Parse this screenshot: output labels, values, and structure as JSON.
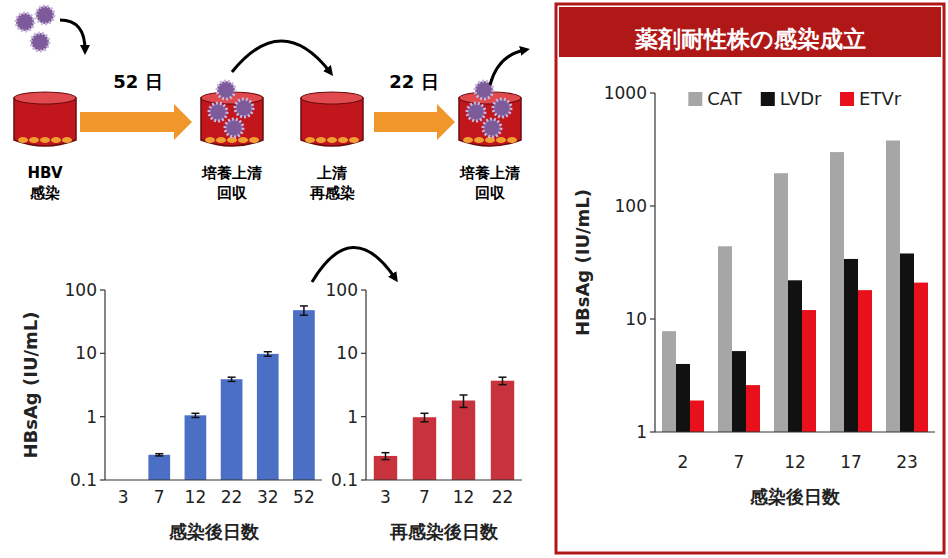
{
  "diagram": {
    "steps": [
      {
        "label": [
          "HBV",
          "感染"
        ]
      },
      {
        "label": [
          "培養上清",
          "回収"
        ]
      },
      {
        "label": [
          "上清",
          "再感染"
        ]
      },
      {
        "label": [
          "培養上清",
          "回収"
        ]
      }
    ],
    "intervals": [
      "52 日",
      "22 日"
    ]
  },
  "chart_data": [
    {
      "type": "bar",
      "categories": [
        "3",
        "7",
        "12",
        "22",
        "32",
        "52"
      ],
      "values": [
        null,
        0.25,
        1.05,
        3.9,
        9.8,
        48
      ],
      "errors": [
        null,
        0.01,
        0.08,
        0.3,
        0.8,
        8
      ],
      "color": "#4a6fc4",
      "x_label": "感染後日数",
      "y_label": "HBsAg (IU/mL)",
      "log": "y",
      "ylim": [
        0.1,
        100
      ],
      "yticks": [
        0.1,
        1,
        10,
        100
      ]
    },
    {
      "type": "bar",
      "categories": [
        "3",
        "7",
        "12",
        "22"
      ],
      "values": [
        0.24,
        0.98,
        1.8,
        3.7
      ],
      "errors": [
        0.03,
        0.15,
        0.4,
        0.5
      ],
      "color": "#c8323c",
      "x_label": "再感染後日数",
      "log": "y",
      "ylim": [
        0.1,
        100
      ],
      "yticks": [
        0.1,
        1,
        10,
        100
      ]
    },
    {
      "type": "bar",
      "title": "薬剤耐性株の感染成立",
      "categories": [
        "2",
        "7",
        "12",
        "17",
        "23"
      ],
      "series": [
        {
          "name": "CAT",
          "color": "#a6a6a6",
          "values": [
            7.8,
            44,
            195,
            300,
            380
          ]
        },
        {
          "name": "LVDr",
          "color": "#111111",
          "values": [
            4.0,
            5.2,
            22,
            34,
            38
          ]
        },
        {
          "name": "ETVr",
          "color": "#e8101a",
          "values": [
            1.9,
            2.6,
            12,
            18,
            21
          ]
        }
      ],
      "x_label": "感染後日数",
      "y_label": "HBsAg (IU/mL)",
      "log": "y",
      "ylim": [
        1,
        1000
      ],
      "yticks": [
        1,
        10,
        100,
        1000
      ],
      "legend": "top"
    }
  ]
}
